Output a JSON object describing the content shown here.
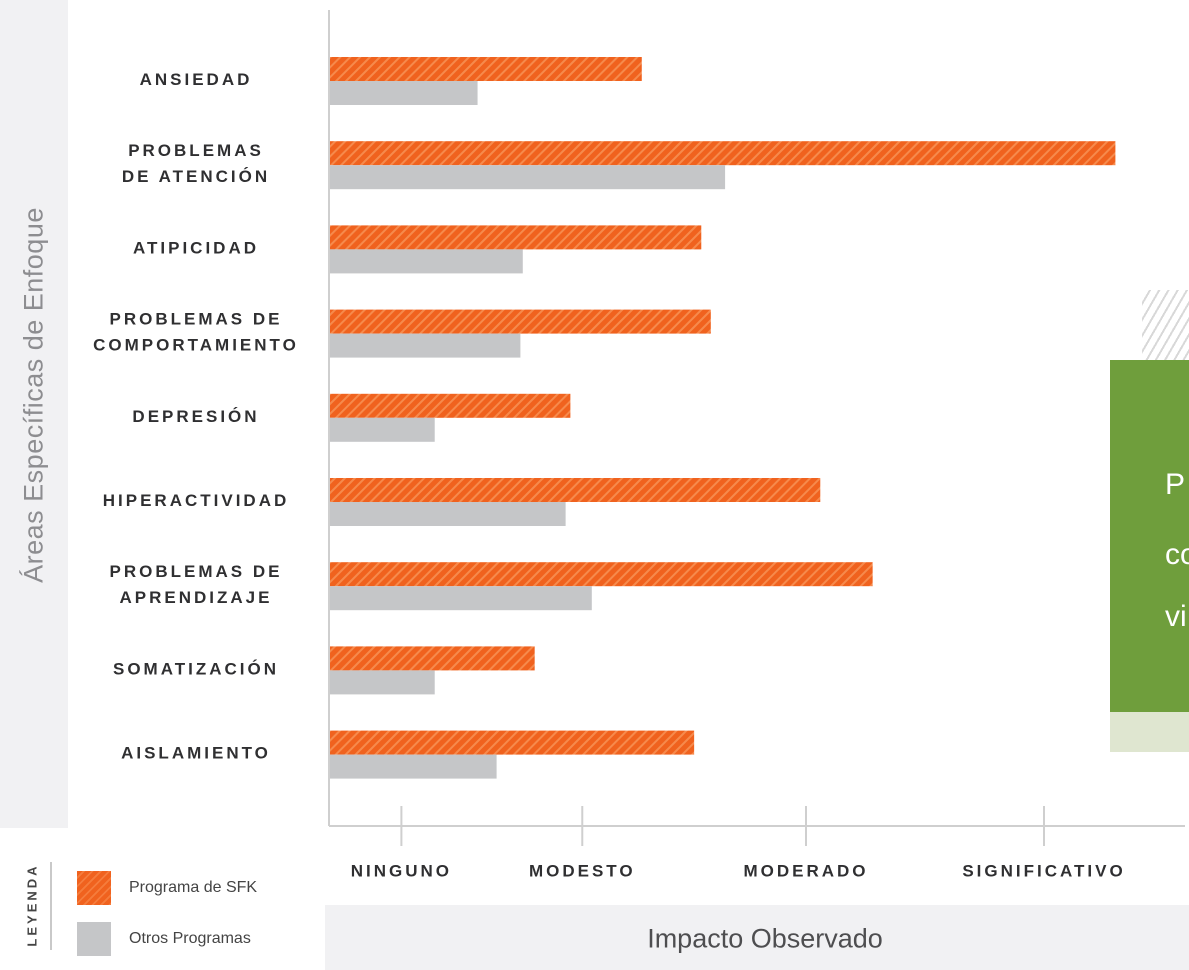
{
  "chart_data": {
    "type": "bar",
    "orientation": "horizontal",
    "categories": [
      "ANSIEDAD",
      "PROBLEMAS\nDE ATENCIÓN",
      "ATIPICIDAD",
      "PROBLEMAS DE\nCOMPORTAMIENTO",
      "DEPRESIÓN",
      "HIPERACTIVIDAD",
      "PROBLEMAS DE\nAPRENDIZAJE",
      "SOMATIZACIÓN",
      "AISLAMIENTO"
    ],
    "series": [
      {
        "name": "Programa de SFK",
        "color": "#f0621e",
        "values": [
          1.31,
          3.3,
          1.56,
          1.6,
          1.01,
          2.06,
          2.28,
          0.86,
          1.53
        ]
      },
      {
        "name": "Otros Programas",
        "color": "#c5c6c8",
        "values": [
          0.62,
          1.66,
          0.81,
          0.8,
          0.44,
          0.99,
          1.1,
          0.44,
          0.7
        ]
      }
    ],
    "x_ticks": [
      {
        "value": 0.3,
        "label": "NINGUNO"
      },
      {
        "value": 1.06,
        "label": "MODESTO"
      },
      {
        "value": 2.0,
        "label": "MODERADO"
      },
      {
        "value": 3.0,
        "label": "SIGNIFICATIVO"
      }
    ],
    "xlim": [
      0,
      3.4
    ],
    "xlabel": "Impacto Observado",
    "ylabel": "Áreas Específicas de Enfoque",
    "legend_title": "LEYENDA",
    "legend_position": "bottom-left",
    "grid": false
  },
  "side_panel": {
    "color": "#6f9e3c",
    "lines": [
      "P",
      "co",
      "vi"
    ]
  }
}
